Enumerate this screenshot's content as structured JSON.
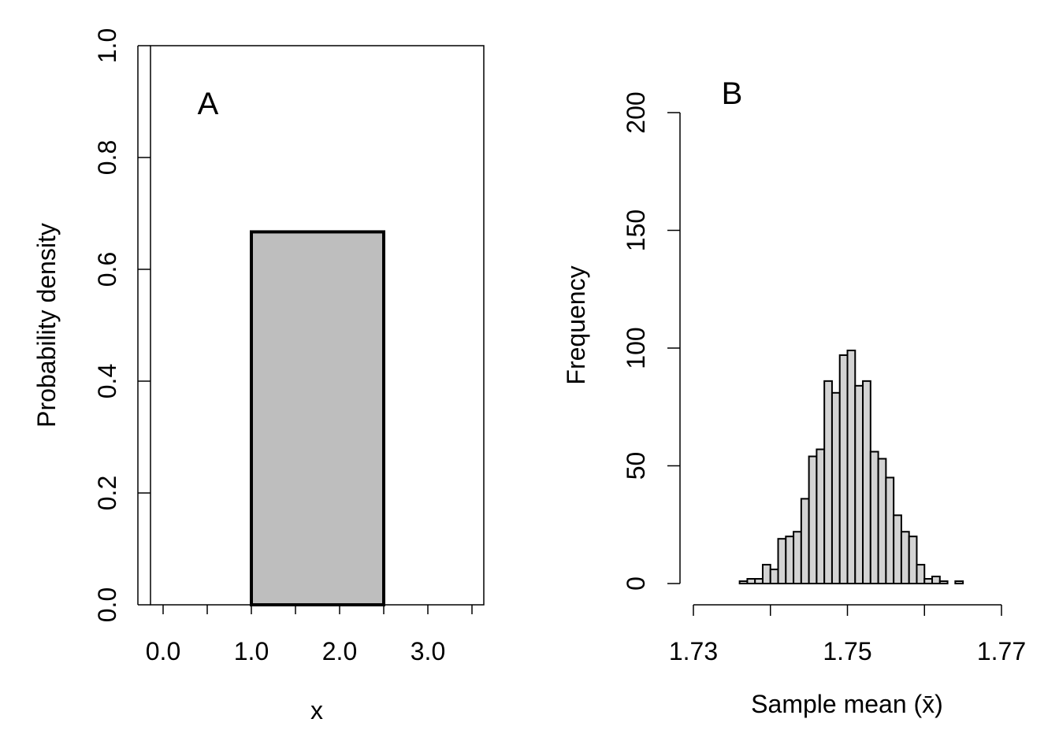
{
  "chart_data": [
    {
      "type": "bar",
      "panel_label": "A",
      "title": "",
      "xlabel": "x",
      "ylabel": "Probability density",
      "xlim": [
        -0.14,
        3.64
      ],
      "ylim": [
        0,
        1
      ],
      "xticks": [
        0,
        0.5,
        1,
        1.5,
        2,
        2.5,
        3,
        3.5
      ],
      "xtick_labels": [
        "0.0",
        "1.0",
        "2.0",
        "3.0"
      ],
      "xtick_label_values": [
        0,
        1,
        2,
        3
      ],
      "yticks": [
        0,
        0.2,
        0.4,
        0.6,
        0.8,
        1.0
      ],
      "ytick_labels": [
        "0.0",
        "0.2",
        "0.4",
        "0.6",
        "0.8",
        "1.0"
      ],
      "bars": [
        {
          "x0": 1.0,
          "x1": 2.5,
          "value": 0.667
        }
      ],
      "fill": "#bebebe",
      "grid": false
    },
    {
      "type": "bar",
      "panel_label": "B",
      "title": "",
      "xlabel": "Sample mean (x̄)",
      "ylabel": "Frequency",
      "xlim": [
        1.73,
        1.77
      ],
      "ylim": [
        0,
        200
      ],
      "xticks": [
        1.73,
        1.74,
        1.75,
        1.76,
        1.77
      ],
      "xtick_labels": [
        "1.73",
        "1.75",
        "1.77"
      ],
      "xtick_label_values": [
        1.73,
        1.75,
        1.77
      ],
      "yticks": [
        0,
        50,
        100,
        150,
        200
      ],
      "ytick_labels": [
        "0",
        "50",
        "100",
        "150",
        "200"
      ],
      "bin_start": 1.736,
      "bin_width": 0.001,
      "values": [
        1,
        2,
        2,
        8,
        6,
        19,
        20,
        22,
        36,
        54,
        57,
        86,
        81,
        97,
        99,
        84,
        86,
        56,
        53,
        45,
        29,
        22,
        20,
        8,
        2,
        3,
        1,
        0,
        1
      ],
      "fill": "#d3d3d3",
      "grid": false
    }
  ]
}
